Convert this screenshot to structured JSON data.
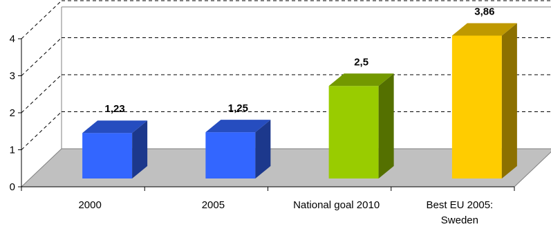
{
  "chart_data": {
    "type": "bar",
    "categories": [
      "2000",
      "2005",
      "National goal 2010",
      "Best EU 2005:\nSweden"
    ],
    "values": [
      1.23,
      1.25,
      2.5,
      3.86
    ],
    "value_labels": [
      "1,23",
      "1,25",
      "2,5",
      "3,86"
    ],
    "ylim": [
      0,
      4
    ],
    "yticks": [
      "0",
      "1",
      "2",
      "3",
      "4"
    ],
    "grid": true,
    "three_d": true,
    "colors": {
      "bars": [
        "#3366ff",
        "#3366ff",
        "#99cc00",
        "#ffcc00"
      ],
      "floor": "#c0c0c0",
      "grid": "#000000"
    }
  }
}
